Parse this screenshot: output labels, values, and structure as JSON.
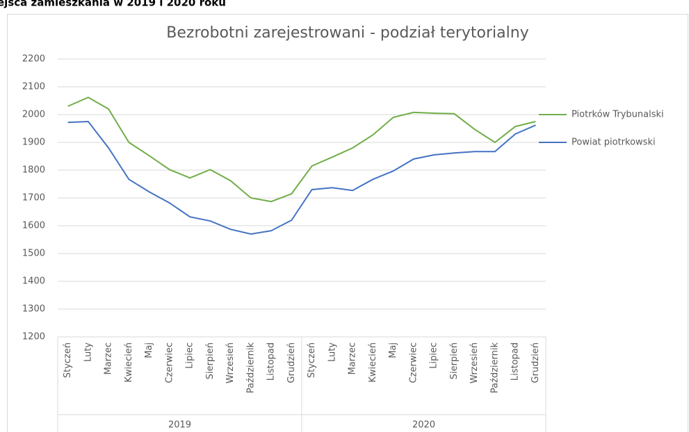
{
  "page_heading": "ejsca zamieszkania w 2019 i 2020 roku",
  "chart_data": {
    "type": "line",
    "title": "Bezrobotni  zarejestrowani - podział terytorialny",
    "categories": [
      "Styczeń",
      "Luty",
      "Marzec",
      "Kwiecień",
      "Maj",
      "Czerwiec",
      "Lipiec",
      "Sierpień",
      "Wrzesień",
      "Październik",
      "Listopad",
      "Grudzień",
      "Styczeń",
      "Luty",
      "Marzec",
      "Kwiecień",
      "Maj",
      "Czerwiec",
      "Lipiec",
      "Sierpień",
      "Wrzesień",
      "Październik",
      "Listopad",
      "Grudzień"
    ],
    "category_groups": [
      "2019",
      "2020"
    ],
    "series": [
      {
        "name": "Piotrków Trybunalski",
        "color": "#70ad47",
        "values": [
          2030,
          2062,
          2020,
          1900,
          1852,
          1802,
          1772,
          1802,
          1762,
          1700,
          1687,
          1715,
          1815,
          1847,
          1880,
          1927,
          1990,
          2008,
          2005,
          2003,
          1947,
          1900,
          1957,
          1975
        ]
      },
      {
        "name": "Powiat piotrkowski",
        "color": "#4472c4",
        "values": [
          1972,
          1975,
          1880,
          1767,
          1722,
          1682,
          1632,
          1617,
          1587,
          1570,
          1582,
          1620,
          1730,
          1737,
          1727,
          1767,
          1797,
          1840,
          1855,
          1862,
          1867,
          1867,
          1930,
          1962
        ]
      }
    ],
    "ylim": [
      1200,
      2200
    ],
    "yticks": [
      1200,
      1300,
      1400,
      1500,
      1600,
      1700,
      1800,
      1900,
      2000,
      2100,
      2200
    ],
    "grid": true,
    "legend": "right"
  }
}
